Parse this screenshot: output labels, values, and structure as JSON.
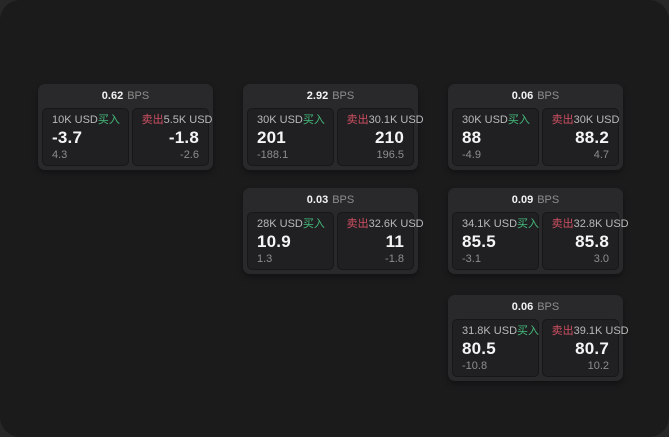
{
  "labels": {
    "bps_suffix": "BPS",
    "buy": "买入",
    "sell": "卖出"
  },
  "colors": {
    "window_background": "#1b1b1c",
    "card_background": "#29292b",
    "panel_background": "#202022",
    "buy_green": "#46bd7d",
    "sell_red": "#cf4f63",
    "price_text": "#f5f5f5",
    "muted_text": "#8d8d8d"
  },
  "cards": [
    {
      "bps": "0.62",
      "col": 0,
      "row": 0,
      "buy": {
        "amount": "10K USD",
        "price": "-3.7",
        "delta": "4.3"
      },
      "sell": {
        "amount": "5.5K USD",
        "price": "-1.8",
        "delta": "-2.6"
      }
    },
    {
      "bps": "2.92",
      "col": 1,
      "row": 0,
      "buy": {
        "amount": "30K USD",
        "price": "201",
        "delta": "-188.1"
      },
      "sell": {
        "amount": "30.1K USD",
        "price": "210",
        "delta": "196.5"
      }
    },
    {
      "bps": "0.03",
      "col": 1,
      "row": 1,
      "buy": {
        "amount": "28K USD",
        "price": "10.9",
        "delta": "1.3"
      },
      "sell": {
        "amount": "32.6K USD",
        "price": "11",
        "delta": "-1.8"
      }
    },
    {
      "bps": "0.06",
      "col": 2,
      "row": 0,
      "buy": {
        "amount": "30K USD",
        "price": "88",
        "delta": "-4.9"
      },
      "sell": {
        "amount": "30K USD",
        "price": "88.2",
        "delta": "4.7"
      }
    },
    {
      "bps": "0.09",
      "col": 2,
      "row": 1,
      "buy": {
        "amount": "34.1K USD",
        "price": "85.5",
        "delta": "-3.1"
      },
      "sell": {
        "amount": "32.8K USD",
        "price": "85.8",
        "delta": "3.0"
      }
    },
    {
      "bps": "0.06",
      "col": 2,
      "row": 2,
      "buy": {
        "amount": "31.8K USD",
        "price": "80.5",
        "delta": "-10.8"
      },
      "sell": {
        "amount": "39.1K USD",
        "price": "80.7",
        "delta": "10.2"
      }
    }
  ]
}
